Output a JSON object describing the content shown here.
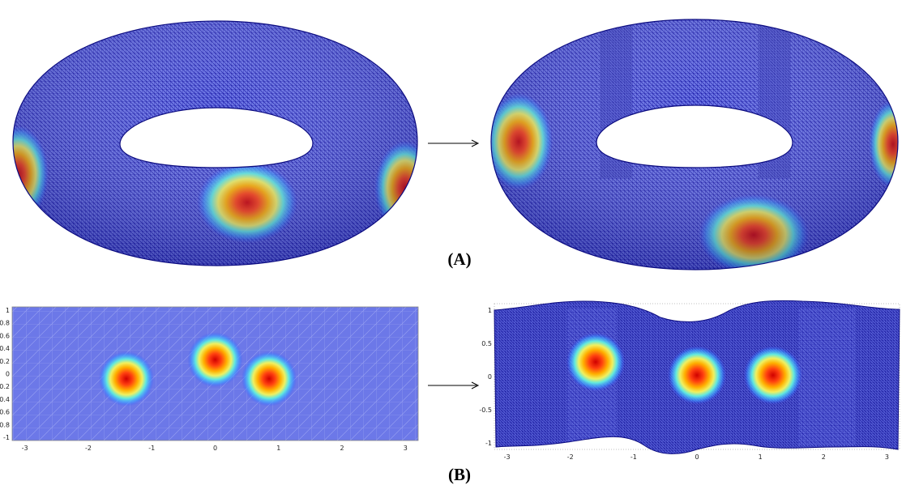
{
  "labels": {
    "panel_a": "(A)",
    "panel_b": "(B)"
  },
  "colors": {
    "mesh": "#1a1ab0",
    "mesh_bg": "#6e78e6",
    "hot": "#d40000",
    "arrow": "#000000"
  },
  "icons": {
    "arrow_a": "right-arrow-icon",
    "arrow_b": "right-arrow-icon"
  },
  "plot_left": {
    "xlim": [
      -3.2,
      3.2
    ],
    "ylim": [
      -1.05,
      1.05
    ],
    "xticks": [
      "-3",
      "-2",
      "-1",
      "0",
      "1",
      "2",
      "3"
    ],
    "yticks": [
      "1",
      "0.8",
      "0.6",
      "0.4",
      "0.2",
      "0",
      "-0.2",
      "-0.4",
      "-0.6",
      "-0.8",
      "-1"
    ],
    "blobs": [
      {
        "x": -1.4,
        "y": -0.08
      },
      {
        "x": 0.0,
        "y": 0.22
      },
      {
        "x": 0.85,
        "y": -0.08
      }
    ]
  },
  "plot_right": {
    "xlim": [
      -3.2,
      3.2
    ],
    "ylim": [
      -1.1,
      1.1
    ],
    "xticks": [
      "-3",
      "-2",
      "-1",
      "0",
      "1",
      "2",
      "3"
    ],
    "yticks": [
      "1",
      "0.5",
      "0",
      "-0.5",
      "-1"
    ],
    "blobs": [
      {
        "x": -1.6,
        "y": 0.22
      },
      {
        "x": 0.0,
        "y": 0.02
      },
      {
        "x": 1.2,
        "y": 0.02
      }
    ]
  }
}
